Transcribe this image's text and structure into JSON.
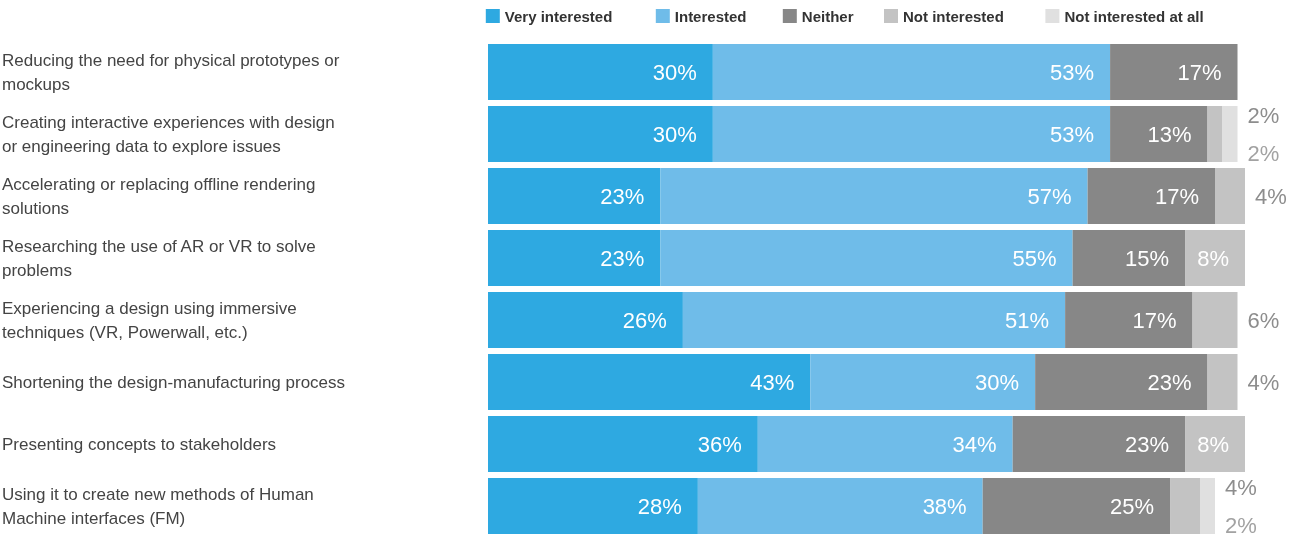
{
  "chart_data": {
    "type": "bar",
    "orientation": "horizontal",
    "stacked": true,
    "legend": "top right",
    "categories": [
      "Reducing the need for physical prototypes or mockups",
      "Creating interactive experiences with design or engineering data to explore issues",
      "Accelerating or replacing offline rendering solutions",
      "Researching the use of AR or VR to solve problems",
      "Experiencing a design using immersive techniques (VR, Powerwall, etc.)",
      "Shortening the design-manufacturing process",
      "Presenting concepts to stakeholders",
      "Using it to create new methods of Human Machine interfaces (FM)"
    ],
    "series": [
      {
        "name": "Very interested",
        "color": "#2ea9e1",
        "values": [
          30,
          30,
          23,
          23,
          26,
          43,
          36,
          28
        ],
        "value_labels": [
          "30%",
          "30%",
          "23%",
          "23%",
          "26%",
          "43%",
          "36%",
          "28%"
        ]
      },
      {
        "name": "Interested",
        "color": "#6fbce9",
        "values": [
          53,
          53,
          57,
          55,
          51,
          30,
          34,
          38
        ],
        "value_labels": [
          "53%",
          "53%",
          "57%",
          "55%",
          "51%",
          "30%",
          "34%",
          "38%"
        ]
      },
      {
        "name": "Neither",
        "color": "#878787",
        "values": [
          17,
          13,
          17,
          15,
          17,
          23,
          23,
          25
        ],
        "value_labels": [
          "17%",
          "13%",
          "17%",
          "15%",
          "17%",
          "23%",
          "23%",
          "25%"
        ]
      },
      {
        "name": "Not interested",
        "color": "#c3c3c3",
        "values": [
          null,
          2,
          4,
          8,
          6,
          4,
          8,
          4
        ],
        "value_labels": [
          null,
          "2%",
          "4%",
          "8%",
          "6%",
          "4%",
          "8%",
          "4%"
        ]
      },
      {
        "name": "Not interested at all",
        "color": "#e0e0e0",
        "values": [
          null,
          2,
          null,
          null,
          null,
          null,
          null,
          2
        ],
        "value_labels": [
          null,
          "2%",
          null,
          null,
          null,
          null,
          null,
          "2%"
        ]
      }
    ]
  }
}
